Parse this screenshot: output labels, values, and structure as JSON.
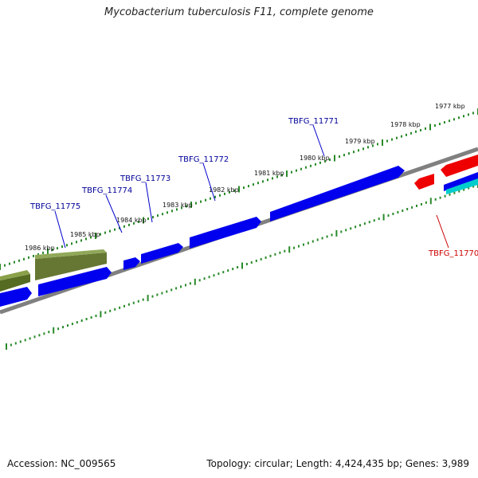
{
  "title": "Mycobacterium tuberculosis F11, complete genome",
  "footer": {
    "accession": "Accession: NC_009565",
    "summary": "Topology: circular; Length: 4,424,435 bp; Genes: 3,989"
  },
  "colors": {
    "gene_forward": "#0000ee",
    "gene_forward_alt": "#667733",
    "gene_reverse": "#ee0000",
    "gene_cyan": "#00cccc",
    "backbone": "#808080",
    "tick": "#2a8a2a",
    "label_blue": "#000099",
    "label_red": "#cc0000"
  },
  "scale_labels": [
    "1986 kbp",
    "1985 kbp",
    "1984 kbp",
    "1983 kbp",
    "1982 kbp",
    "1981 kbp",
    "1980 kbp",
    "1979 kbp",
    "1978 kbp",
    "1977 kbp"
  ],
  "gene_labels": [
    {
      "text": "TBFG_11775",
      "strand": "forward"
    },
    {
      "text": "TBFG_11774",
      "strand": "forward"
    },
    {
      "text": "TBFG_11773",
      "strand": "forward"
    },
    {
      "text": "TBFG_11772",
      "strand": "forward"
    },
    {
      "text": "TBFG_11771",
      "strand": "forward"
    },
    {
      "text": "TBFG_11770",
      "strand": "reverse"
    }
  ]
}
